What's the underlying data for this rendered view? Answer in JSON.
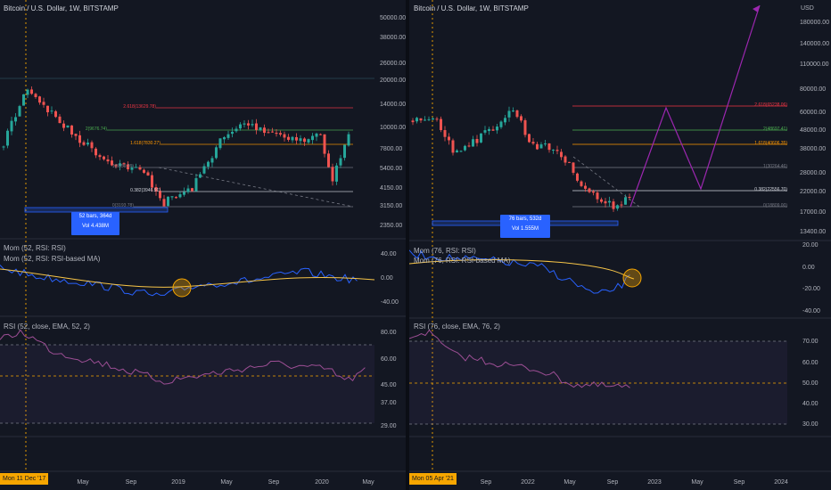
{
  "colors": {
    "background": "#131722",
    "up": "#26a69a",
    "down": "#ef5350",
    "fib_red": "#f23645",
    "fib_orange": "#ff9800",
    "fib_gray": "#787b86",
    "fib_green": "#4caf50",
    "mom": "#2962ff",
    "ma": "#f7c548",
    "rsi": "#9c4e94",
    "projection": "#9c27b0",
    "date_marker": "#f7a600"
  },
  "left": {
    "title": "Bitcoin / U.S. Dollar, 1W, BITSTAMP",
    "price_ticks": [
      "50000.00",
      "38000.00",
      "26000.00",
      "20000.00",
      "14000.00",
      "10000.00",
      "7800.00",
      "5400.00",
      "4150.00",
      "3150.00",
      "2350.00"
    ],
    "fib_labels": [
      {
        "text": "2.618(13629.78)",
        "color": "#f23645"
      },
      {
        "text": "2(9676.74)",
        "color": "#4caf50"
      },
      {
        "text": "1.618(7830.27)",
        "color": "#ff9800"
      },
      {
        "text": "1(5559.26)",
        "color": "#787b86"
      },
      {
        "text": "0.382(3946.91)",
        "color": "#d1d4dc"
      },
      {
        "text": "0(3193.78)",
        "color": "#787b86"
      }
    ],
    "bars_box": {
      "line1": "52 bars, 364d",
      "line2": "Vol 4.438M"
    },
    "mom_label_1": "Mom (52, RSI: RSI)",
    "mom_label_2": "Mom (52, RSI: RSI-based MA)",
    "mom_ticks": [
      "40.00",
      "0.00",
      "-40.00"
    ],
    "rsi_label": "RSI (52, close, EMA, 52, 2)",
    "rsi_ticks": [
      "80.00",
      "60.00",
      "45.00",
      "37.00",
      "29.00"
    ],
    "x_ticks": [
      "May",
      "Sep",
      "2019",
      "May",
      "Sep",
      "2020",
      "May"
    ],
    "date_tag": "Mon 11 Dec '17"
  },
  "right": {
    "title": "Bitcoin / U.S. Dollar, 1W, BITSTAMP",
    "currency": "USD",
    "price_ticks": [
      "180000.00",
      "140000.00",
      "110000.00",
      "80000.00",
      "60000.00",
      "48000.00",
      "38000.00",
      "28000.00",
      "22000.00",
      "17000.00",
      "13400.00"
    ],
    "fib_labels": [
      {
        "text": "2.618(65238.06)",
        "color": "#f23645"
      },
      {
        "text": "2(48697.41)",
        "color": "#4caf50"
      },
      {
        "text": "1.618(40606.35)",
        "color": "#ff9800"
      },
      {
        "text": "1(30264.46)",
        "color": "#787b86"
      },
      {
        "text": "0.382(22556.70)",
        "color": "#d1d4dc"
      },
      {
        "text": "0(18809.00)",
        "color": "#787b86"
      }
    ],
    "bars_box": {
      "line1": "76 bars, 532d",
      "line2": "Vol 1.555M"
    },
    "mom_label_1": "Mom (76, RSI: RSI)",
    "mom_label_2": "Mom (76, RSI: RSI-based MA)",
    "mom_ticks": [
      "20.00",
      "0.00",
      "-20.00",
      "-40.00"
    ],
    "rsi_label": "RSI (76, close, EMA, 76, 2)",
    "rsi_ticks": [
      "70.00",
      "60.00",
      "50.00",
      "40.00",
      "30.00"
    ],
    "x_ticks": [
      "Sep",
      "2022",
      "May",
      "Sep",
      "2023",
      "May",
      "Sep",
      "2024"
    ],
    "date_tag": "Mon 05 Apr '21"
  }
}
